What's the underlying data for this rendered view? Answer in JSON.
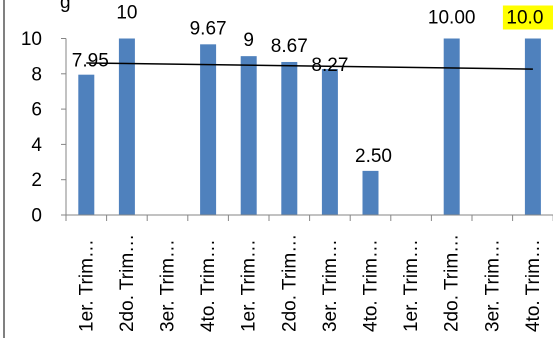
{
  "chart_data": {
    "type": "bar",
    "categories": [
      "1er. Trim…",
      "2do. Trim…",
      "3er. Trim…",
      "4to. Trim…",
      "1er. Trim…",
      "2do. Trim…",
      "3er. Trim…",
      "4to. Trim…",
      "1er. Trim…",
      "2do. Trim…",
      "3er. Trim…",
      "4to. Trim…"
    ],
    "values": [
      7.95,
      10,
      null,
      9.67,
      9,
      8.67,
      8.27,
      2.5,
      null,
      10.0,
      null,
      10.0
    ],
    "data_labels": [
      "7.95",
      "10",
      "",
      "9.67",
      "9",
      "8.67",
      "8.27",
      "2.50",
      "",
      "10.00",
      "",
      "10.0"
    ],
    "trendline": {
      "type": "linear",
      "color": "#000000"
    },
    "ylim": [
      0,
      10
    ],
    "yticks": [
      "0",
      "2",
      "4",
      "6",
      "8",
      "10"
    ],
    "bar_color": "#4f81bd",
    "highlight_label_color": "#ffff00",
    "partial_label": "g",
    "gridlines": false
  }
}
